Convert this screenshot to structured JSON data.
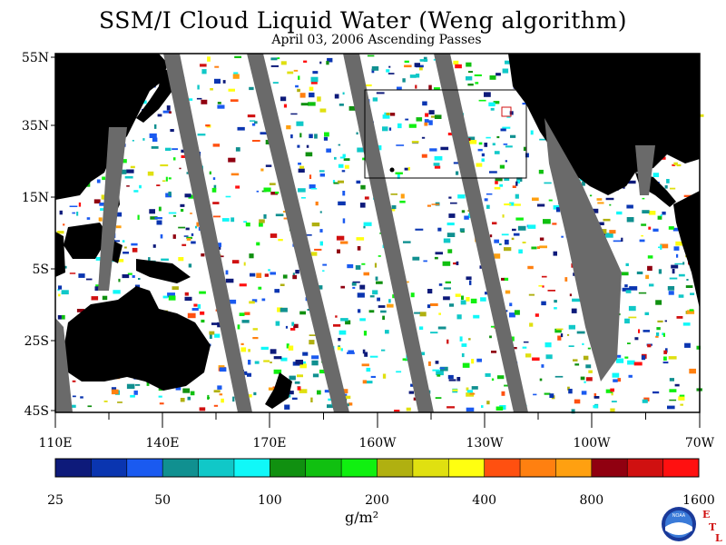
{
  "title": "SSM/I Cloud Liquid Water (Weng algorithm)",
  "subtitle": "April 03, 2006  Ascending Passes",
  "lat_labels": [
    "55N",
    "35N",
    "15N",
    "5S",
    "25S",
    "45S"
  ],
  "lon_labels": [
    "110E",
    "140E",
    "170E",
    "160W",
    "130W",
    "100W",
    "70W"
  ],
  "colorbar": {
    "tick_labels": [
      "25",
      "50",
      "100",
      "200",
      "400",
      "800",
      "1600"
    ],
    "colors": [
      "#0d1a7a",
      "#0a35b0",
      "#1a5af0",
      "#109090",
      "#10c8c8",
      "#10f8f8",
      "#109010",
      "#10c010",
      "#10f010",
      "#b0b010",
      "#e0e010",
      "#ffff10",
      "#ff5010",
      "#ff8010",
      "#ffa010",
      "#900010",
      "#d01010",
      "#ff1010"
    ]
  },
  "units": "g/m²",
  "logo": {
    "name": "NOAA",
    "letters": [
      "E",
      "T",
      "L"
    ]
  },
  "map_colors": {
    "land": "#000000",
    "no_data": "#6a6a6a",
    "ocean_clear": "#ffffff",
    "box_outline": "#000000"
  }
}
